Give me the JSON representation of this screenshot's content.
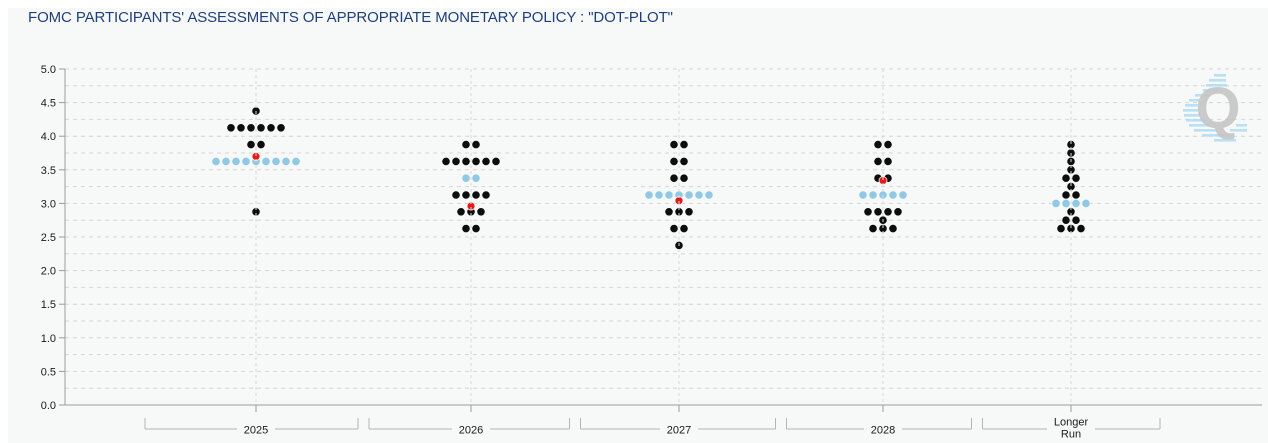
{
  "title": "FOMC PARTICIPANTS' ASSESSMENTS OF APPROPRIATE MONETARY POLICY : \"DOT-PLOT\"",
  "watermark": {
    "letter": "Q"
  },
  "colors": {
    "background": "#f7f8f8",
    "title": "#20407c",
    "dot_black": "#0d0d0d",
    "dot_median_blue": "#8fc9e6",
    "dot_market_red": "#e91818",
    "gridline": "#d6d6d6",
    "center_line": "#d9d9d9",
    "axis": "#9b9b9b",
    "bracket": "#b5b5b5",
    "tick_label": "#1a1a1a",
    "watermark_q": "#c6c6c6",
    "watermark_stripe": "#aedcf4"
  },
  "y_axis": {
    "tick_labels": [
      "5.0",
      "4.5",
      "4.0",
      "3.5",
      "3.0",
      "2.5",
      "2.0",
      "1.5",
      "1.0",
      "0.5",
      "0.0"
    ],
    "min": 0.0,
    "max": 5.0,
    "tick_step": 0.5,
    "grid_step": 0.25
  },
  "chart_data": {
    "type": "scatter",
    "subtype": "fomc-dot-plot",
    "ylim": [
      0,
      5
    ],
    "grid": true,
    "legend": "none",
    "columns": [
      {
        "label": "2025",
        "label_lines": [
          "2025"
        ],
        "median": 3.625,
        "market_implied_rate": 3.7,
        "rows": [
          {
            "rate": 4.375,
            "count": 1,
            "style": "black"
          },
          {
            "rate": 4.125,
            "count": 6,
            "style": "black"
          },
          {
            "rate": 3.875,
            "count": 2,
            "style": "black"
          },
          {
            "rate": 3.625,
            "count": 9,
            "style": "blue-median"
          },
          {
            "rate": 2.875,
            "count": 1,
            "style": "black"
          }
        ]
      },
      {
        "label": "2026",
        "label_lines": [
          "2026"
        ],
        "median": 3.375,
        "market_implied_rate": 2.96,
        "rows": [
          {
            "rate": 3.875,
            "count": 2,
            "style": "black"
          },
          {
            "rate": 3.625,
            "count": 6,
            "style": "black"
          },
          {
            "rate": 3.375,
            "count": 2,
            "style": "blue-median"
          },
          {
            "rate": 3.125,
            "count": 4,
            "style": "black"
          },
          {
            "rate": 2.875,
            "count": 3,
            "style": "black"
          },
          {
            "rate": 2.625,
            "count": 2,
            "style": "black"
          }
        ]
      },
      {
        "label": "2027",
        "label_lines": [
          "2027"
        ],
        "median": 3.125,
        "market_implied_rate": 3.04,
        "rows": [
          {
            "rate": 3.875,
            "count": 2,
            "style": "black"
          },
          {
            "rate": 3.625,
            "count": 2,
            "style": "black"
          },
          {
            "rate": 3.375,
            "count": 2,
            "style": "black"
          },
          {
            "rate": 3.125,
            "count": 7,
            "style": "blue-median"
          },
          {
            "rate": 2.875,
            "count": 3,
            "style": "black"
          },
          {
            "rate": 2.625,
            "count": 2,
            "style": "black"
          },
          {
            "rate": 2.375,
            "count": 1,
            "style": "black"
          }
        ]
      },
      {
        "label": "2028",
        "label_lines": [
          "2028"
        ],
        "median": 3.125,
        "market_implied_rate": 3.34,
        "rows": [
          {
            "rate": 3.875,
            "count": 2,
            "style": "black"
          },
          {
            "rate": 3.625,
            "count": 2,
            "style": "black"
          },
          {
            "rate": 3.375,
            "count": 2,
            "style": "black"
          },
          {
            "rate": 3.125,
            "count": 5,
            "style": "blue-median"
          },
          {
            "rate": 2.875,
            "count": 4,
            "style": "black"
          },
          {
            "rate": 2.75,
            "count": 1,
            "style": "black"
          },
          {
            "rate": 2.625,
            "count": 3,
            "style": "black"
          }
        ]
      },
      {
        "label": "Longer Run",
        "label_lines": [
          "Longer",
          "Run"
        ],
        "median": 3.0,
        "market_implied_rate": null,
        "rows": [
          {
            "rate": 3.875,
            "count": 1,
            "style": "black"
          },
          {
            "rate": 3.75,
            "count": 1,
            "style": "black"
          },
          {
            "rate": 3.625,
            "count": 1,
            "style": "black"
          },
          {
            "rate": 3.5,
            "count": 1,
            "style": "black"
          },
          {
            "rate": 3.375,
            "count": 2,
            "style": "black"
          },
          {
            "rate": 3.25,
            "count": 1,
            "style": "black"
          },
          {
            "rate": 3.125,
            "count": 2,
            "style": "black"
          },
          {
            "rate": 3.0,
            "count": 4,
            "style": "blue-median"
          },
          {
            "rate": 2.875,
            "count": 1,
            "style": "black"
          },
          {
            "rate": 2.75,
            "count": 2,
            "style": "black"
          },
          {
            "rate": 2.625,
            "count": 3,
            "style": "black"
          }
        ]
      }
    ]
  }
}
